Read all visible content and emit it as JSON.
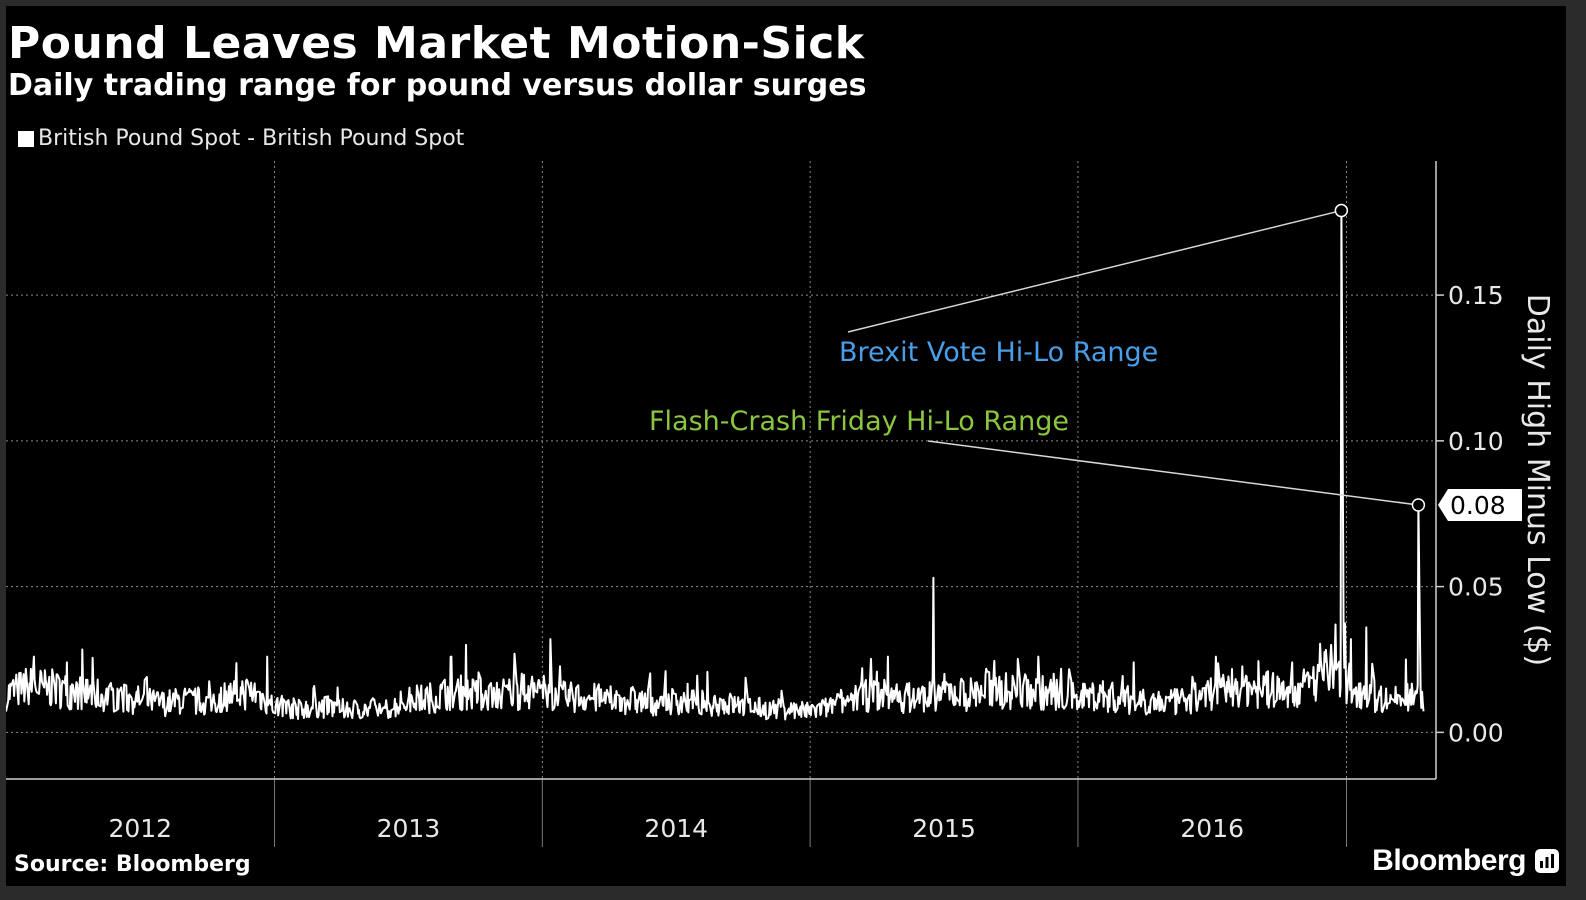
{
  "title": "Pound Leaves Market Motion-Sick",
  "subtitle": "Daily trading range for pound versus dollar surges",
  "source": "Source: Bloomberg",
  "brand": "Bloomberg",
  "colors": {
    "background": "#000000",
    "line": "#ffffff",
    "brexit_label": "#4a9ee8",
    "flash_label": "#8cc63f",
    "grid": "#8a8a8a"
  },
  "chart_data": {
    "type": "line",
    "xlabel": "",
    "ylabel": "Daily High Minus Low ($)",
    "ylim": [
      -0.016,
      0.196
    ],
    "xlim": [
      "2011-07-01",
      "2016-10-31"
    ],
    "y_ticks": [
      0.0,
      0.05,
      0.1,
      0.15
    ],
    "y_tick_labels": [
      "0.00",
      "0.05",
      "0.10",
      "0.15"
    ],
    "x_ticks": [
      "2012",
      "2013",
      "2014",
      "2015",
      "2016"
    ],
    "x_tick_dates": [
      "2012-01-01",
      "2013-01-01",
      "2014-01-01",
      "2015-01-01",
      "2016-01-01"
    ],
    "x_boundaries": [
      "2011-07-01",
      "2012-07-01",
      "2013-07-01",
      "2014-07-01",
      "2015-07-01",
      "2016-07-01"
    ],
    "grid": true,
    "legend_placement": "top-left",
    "series": [
      {
        "name": "British Pound Spot - British Pound Spot",
        "points": [
          [
            "2011-07-01",
            0.013
          ],
          [
            "2011-08-01",
            0.016
          ],
          [
            "2011-09-01",
            0.015
          ],
          [
            "2011-10-01",
            0.014
          ],
          [
            "2011-11-01",
            0.013
          ],
          [
            "2011-12-01",
            0.012
          ],
          [
            "2012-01-01",
            0.011
          ],
          [
            "2012-02-01",
            0.01
          ],
          [
            "2012-03-01",
            0.011
          ],
          [
            "2012-04-01",
            0.01
          ],
          [
            "2012-05-01",
            0.013
          ],
          [
            "2012-06-01",
            0.014
          ],
          [
            "2012-07-01",
            0.009
          ],
          [
            "2012-08-01",
            0.008
          ],
          [
            "2012-09-01",
            0.009
          ],
          [
            "2012-10-01",
            0.008
          ],
          [
            "2012-11-01",
            0.008
          ],
          [
            "2012-12-01",
            0.008
          ],
          [
            "2013-01-01",
            0.011
          ],
          [
            "2013-02-01",
            0.012
          ],
          [
            "2013-03-01",
            0.014
          ],
          [
            "2013-04-01",
            0.013
          ],
          [
            "2013-05-01",
            0.013
          ],
          [
            "2013-06-01",
            0.014
          ],
          [
            "2013-07-01",
            0.014
          ],
          [
            "2013-08-01",
            0.012
          ],
          [
            "2013-09-01",
            0.012
          ],
          [
            "2013-10-01",
            0.011
          ],
          [
            "2013-11-01",
            0.011
          ],
          [
            "2013-12-01",
            0.01
          ],
          [
            "2014-01-01",
            0.011
          ],
          [
            "2014-02-01",
            0.01
          ],
          [
            "2014-03-01",
            0.01
          ],
          [
            "2014-04-01",
            0.009
          ],
          [
            "2014-05-01",
            0.008
          ],
          [
            "2014-06-01",
            0.008
          ],
          [
            "2014-07-01",
            0.007
          ],
          [
            "2014-08-01",
            0.009
          ],
          [
            "2014-09-01",
            0.012
          ],
          [
            "2014-10-01",
            0.013
          ],
          [
            "2014-11-01",
            0.012
          ],
          [
            "2014-12-01",
            0.012
          ],
          [
            "2015-01-01",
            0.014
          ],
          [
            "2015-02-01",
            0.013
          ],
          [
            "2015-03-01",
            0.015
          ],
          [
            "2015-04-01",
            0.014
          ],
          [
            "2015-05-01",
            0.014
          ],
          [
            "2015-06-01",
            0.013
          ],
          [
            "2015-07-01",
            0.012
          ],
          [
            "2015-08-01",
            0.013
          ],
          [
            "2015-09-01",
            0.011
          ],
          [
            "2015-10-01",
            0.011
          ],
          [
            "2015-11-01",
            0.01
          ],
          [
            "2015-12-01",
            0.011
          ],
          [
            "2016-01-01",
            0.014
          ],
          [
            "2016-02-01",
            0.016
          ],
          [
            "2016-03-01",
            0.015
          ],
          [
            "2016-04-01",
            0.014
          ],
          [
            "2016-05-01",
            0.015
          ],
          [
            "2016-06-01",
            0.02
          ],
          [
            "2016-07-01",
            0.017
          ],
          [
            "2016-08-01",
            0.013
          ],
          [
            "2016-09-01",
            0.011
          ],
          [
            "2016-10-01",
            0.012
          ],
          [
            "2016-10-31",
            0.01
          ]
        ],
        "spikes": [
          [
            "2011-07-03",
            0.025
          ],
          [
            "2011-08-08",
            0.026
          ],
          [
            "2011-09-22",
            0.024
          ],
          [
            "2012-05-20",
            0.025
          ],
          [
            "2012-06-21",
            0.026
          ],
          [
            "2013-03-19",
            0.03
          ],
          [
            "2013-05-24",
            0.027
          ],
          [
            "2013-07-12",
            0.032
          ],
          [
            "2014-03-15",
            0.022
          ],
          [
            "2014-09-10",
            0.022
          ],
          [
            "2014-10-15",
            0.026
          ],
          [
            "2014-12-16",
            0.053
          ],
          [
            "2015-02-08",
            0.028
          ],
          [
            "2015-05-08",
            0.026
          ],
          [
            "2015-09-15",
            0.024
          ],
          [
            "2016-01-05",
            0.026
          ],
          [
            "2016-03-20",
            0.027
          ],
          [
            "2016-06-10",
            0.03
          ],
          [
            "2016-06-16",
            0.037
          ],
          [
            "2016-06-27",
            0.035
          ],
          [
            "2016-07-07",
            0.032
          ],
          [
            "2016-07-28",
            0.036
          ],
          [
            "2016-09-20",
            0.025
          ]
        ]
      }
    ],
    "annotations": [
      {
        "text": "Brexit Vote Hi-Lo Range",
        "date": "2016-06-24",
        "value": 0.179
      },
      {
        "text": "Flash-Crash Friday Hi-Lo Range",
        "date": "2016-10-07",
        "value": 0.078
      }
    ],
    "last_value_label": "0.08"
  }
}
